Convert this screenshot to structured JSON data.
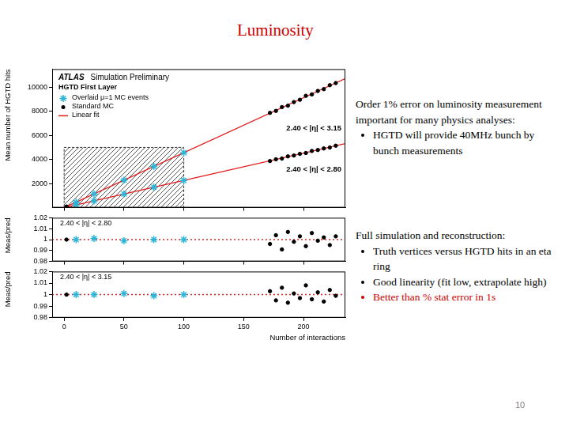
{
  "slide": {
    "title": {
      "text": "Luminosity",
      "color": "#cc0000"
    },
    "blocks": [
      {
        "heading": "Order 1% error on luminosity measurement important for many physics analyses:",
        "bullets": [
          {
            "text": "HGTD will provide 40MHz bunch by bunch measurements"
          }
        ]
      },
      {
        "heading": "Full simulation and reconstruction:",
        "bullets": [
          {
            "text": "Truth vertices versus HGTD hits in an eta ring"
          },
          {
            "text": "Good linearity (fit low, extrapolate high)"
          },
          {
            "text": "Better than % stat error in 1s",
            "color": "#cc0000"
          }
        ]
      }
    ],
    "page_number": 10
  },
  "chart_data": [
    {
      "type": "scatter",
      "title": "ATLAS",
      "subtitle": "Simulation Preliminary",
      "annotations": [
        "HGTD First Layer",
        "2.40 < |η| < 3.15",
        "2.40 < |η| < 2.80"
      ],
      "ylabel": "Mean number of HGTD hits",
      "xlim": [
        -10,
        235
      ],
      "xticks": [
        0,
        50,
        100,
        150,
        200
      ],
      "ylim": [
        0,
        11500
      ],
      "yticks": [
        2000,
        4000,
        6000,
        8000,
        10000
      ],
      "grid": false,
      "legend": "top-left",
      "tick_labels": "y",
      "shaded_region": {
        "x": [
          0,
          100
        ],
        "y": [
          0,
          5000
        ]
      },
      "series": [
        {
          "name": "Overlaid μ=1 MC events",
          "color": "#2bb5d8",
          "marker": "star",
          "x": [
            10,
            25,
            50,
            75,
            100
          ],
          "values": [
            226,
            565,
            1130,
            1695,
            2260
          ]
        },
        {
          "name": "Overlaid μ=1 MC events",
          "color": "#2bb5d8",
          "marker": "star",
          "x": [
            10,
            25,
            50,
            75,
            100
          ],
          "values": [
            456,
            1140,
            2280,
            3420,
            4560
          ]
        },
        {
          "name": "Standard MC",
          "color": "#000000",
          "marker": "circle",
          "x": [
            2,
            172,
            177,
            182,
            187,
            192,
            197,
            202,
            207,
            212,
            217,
            222,
            227
          ],
          "values": [
            45,
            3871,
            4016,
            4076,
            4256,
            4330,
            4465,
            4538,
            4706,
            4786,
            4914,
            4992,
            5145
          ]
        },
        {
          "name": "Standard MC",
          "color": "#000000",
          "marker": "circle",
          "x": [
            2,
            172,
            177,
            182,
            187,
            192,
            197,
            202,
            207,
            212,
            217,
            222,
            227
          ],
          "values": [
            91,
            7867,
            8031,
            8349,
            8467,
            8764,
            8956,
            9285,
            9401,
            9686,
            9836,
            10163,
            10341
          ]
        },
        {
          "name": "Linear fit",
          "type": "line",
          "color": "#e41a1c",
          "line_style": "solid",
          "x": [
            0,
            235
          ],
          "values": [
            0,
            5311
          ]
        },
        {
          "name": "Linear fit",
          "type": "line",
          "color": "#e41a1c",
          "line_style": "solid",
          "x": [
            0,
            235
          ],
          "values": [
            0,
            10716
          ]
        }
      ]
    },
    {
      "type": "scatter",
      "annotations": [
        "2.40 < |η| < 2.80"
      ],
      "ylabel": "Meas/pred",
      "xlim": [
        -10,
        235
      ],
      "xticks": [
        0,
        50,
        100,
        150,
        200
      ],
      "ylim": [
        0.98,
        1.02
      ],
      "yticks": [
        0.98,
        0.99,
        1,
        1.01,
        1.02
      ],
      "grid": false,
      "tick_labels": "y",
      "reference_line": 1,
      "series": [
        {
          "name": "Overlaid μ=1 MC events",
          "color": "#2bb5d8",
          "marker": "star",
          "x": [
            10,
            25,
            50,
            75,
            100
          ],
          "values": [
            1.0,
            1.001,
            0.999,
            1.0,
            1.0
          ]
        },
        {
          "name": "Standard MC",
          "color": "#000000",
          "marker": "circle",
          "x": [
            2,
            172,
            177,
            182,
            187,
            192,
            197,
            202,
            207,
            212,
            217,
            222,
            227
          ],
          "values": [
            1.0,
            0.996,
            1.004,
            0.991,
            1.007,
            0.998,
            1.003,
            0.994,
            1.006,
            0.999,
            1.002,
            0.995,
            1.003
          ]
        }
      ]
    },
    {
      "type": "scatter",
      "annotations": [
        "2.40 < |η| < 3.15"
      ],
      "ylabel": "Meas/pred",
      "xlabel": "Number of interactions",
      "xlim": [
        -10,
        235
      ],
      "xticks": [
        0,
        50,
        100,
        150,
        200
      ],
      "ylim": [
        0.98,
        1.02
      ],
      "yticks": [
        0.98,
        0.99,
        1,
        1.01,
        1.02
      ],
      "grid": false,
      "reference_line": 1,
      "series": [
        {
          "name": "Overlaid μ=1 MC events",
          "color": "#2bb5d8",
          "marker": "star",
          "x": [
            10,
            25,
            50,
            75,
            100
          ],
          "values": [
            1.0,
            1.0,
            1.001,
            0.999,
            1.0
          ]
        },
        {
          "name": "Standard MC",
          "color": "#000000",
          "marker": "circle",
          "x": [
            2,
            172,
            177,
            182,
            187,
            192,
            197,
            202,
            207,
            212,
            217,
            222,
            227
          ],
          "values": [
            1.0,
            1.003,
            0.995,
            1.006,
            0.993,
            1.001,
            0.997,
            1.008,
            0.996,
            1.002,
            0.994,
            1.004,
            0.999
          ]
        }
      ]
    }
  ]
}
